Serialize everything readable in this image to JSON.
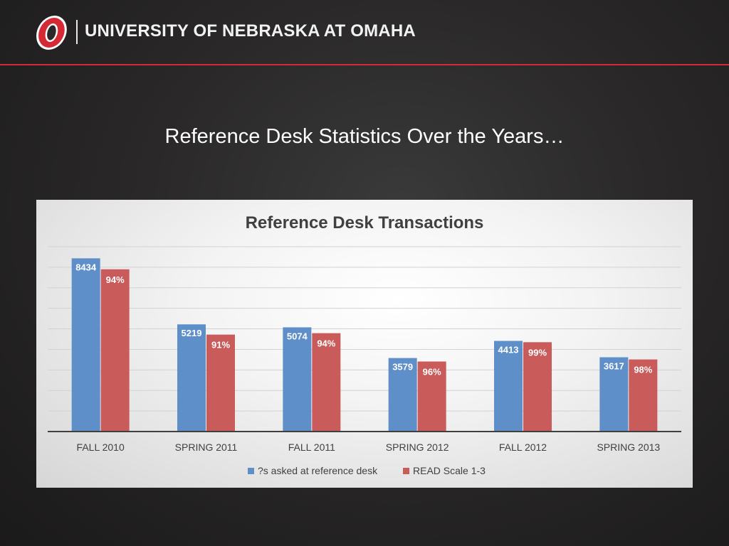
{
  "header": {
    "university_name": "UNIVERSITY OF NEBRASKA AT OMAHA",
    "logo_icon": "uno-o-logo-icon",
    "rule_color": "#d52a35"
  },
  "slide": {
    "title": "Reference Desk Statistics Over the Years…"
  },
  "chart_data": {
    "type": "bar",
    "title": "Reference Desk Transactions",
    "xlabel": "",
    "ylabel": "",
    "ylim": [
      0,
      9000
    ],
    "grid": true,
    "legend_position": "bottom",
    "categories": [
      "FALL 2010",
      "SPRING 2011",
      "FALL 2011",
      "SPRING 2012",
      "FALL 2012",
      "SPRING 2013"
    ],
    "series": [
      {
        "name": "?s asked at reference desk",
        "color": "#5f8fc9",
        "values": [
          8434,
          5219,
          5074,
          3579,
          4413,
          3617
        ],
        "labels": [
          "8434",
          "5219",
          "5074",
          "3579",
          "4413",
          "3617"
        ]
      },
      {
        "name": "READ Scale 1-3",
        "color": "#c95b5b",
        "values": [
          7900,
          4720,
          4790,
          3410,
          4350,
          3510
        ],
        "labels": [
          "94%",
          "91%",
          "94%",
          "96%",
          "99%",
          "98%"
        ]
      }
    ]
  }
}
